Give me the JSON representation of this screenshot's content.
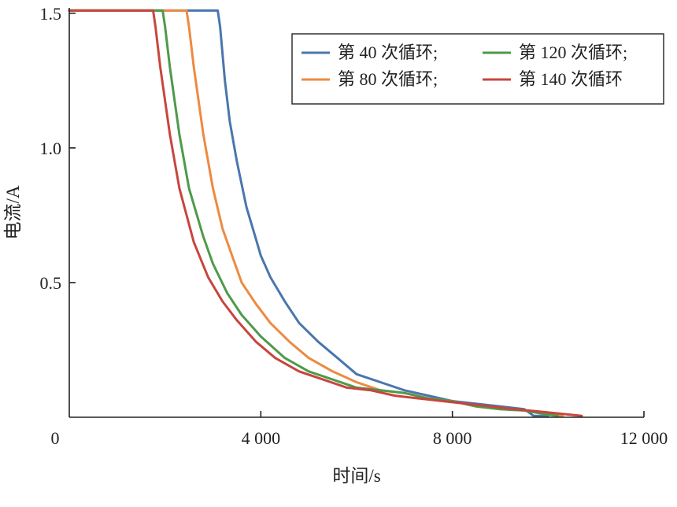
{
  "chart_data": {
    "type": "line",
    "xlabel": "时间/s",
    "ylabel": "电流/A",
    "xlim": [
      0,
      12000
    ],
    "ylim": [
      0,
      1.52
    ],
    "x_ticks": [
      {
        "value": 0,
        "label": "0"
      },
      {
        "value": 4000,
        "label": "4 000"
      },
      {
        "value": 8000,
        "label": "8 000"
      },
      {
        "value": 12000,
        "label": "12 000"
      }
    ],
    "y_ticks": [
      {
        "value": 0.5,
        "label": "0.5"
      },
      {
        "value": 1.0,
        "label": "1.0"
      },
      {
        "value": 1.5,
        "label": "1.5"
      }
    ],
    "grid": false,
    "legend_position": "top-right",
    "series": [
      {
        "name": "第 40 次循环;",
        "color": "#4a76ad",
        "x": [
          0,
          3100,
          3150,
          3250,
          3350,
          3500,
          3700,
          3900,
          4000,
          4200,
          4500,
          4800,
          5200,
          5600,
          6000,
          6500,
          7000,
          7500,
          8000,
          8500,
          9000,
          9500,
          9700,
          10000
        ],
        "y": [
          1.51,
          1.51,
          1.45,
          1.25,
          1.1,
          0.95,
          0.78,
          0.66,
          0.6,
          0.52,
          0.43,
          0.35,
          0.28,
          0.22,
          0.16,
          0.13,
          0.1,
          0.08,
          0.06,
          0.05,
          0.04,
          0.03,
          0.005,
          0.005
        ]
      },
      {
        "name": "第 80 次循环;",
        "color": "#ee8a40",
        "x": [
          0,
          2450,
          2500,
          2600,
          2800,
          3000,
          3200,
          3400,
          3600,
          3900,
          4200,
          4600,
          5000,
          5500,
          6000,
          6500,
          7000,
          7500,
          8000,
          8500,
          9000,
          9500,
          10000,
          10300
        ],
        "y": [
          1.51,
          1.51,
          1.45,
          1.3,
          1.05,
          0.85,
          0.7,
          0.6,
          0.5,
          0.42,
          0.35,
          0.28,
          0.22,
          0.17,
          0.13,
          0.1,
          0.09,
          0.07,
          0.06,
          0.04,
          0.03,
          0.025,
          0.01,
          0.005
        ]
      },
      {
        "name": "第 120 次循环;",
        "color": "#4e9a4a",
        "x": [
          0,
          1950,
          2000,
          2100,
          2300,
          2500,
          2800,
          3000,
          3300,
          3600,
          4000,
          4500,
          5000,
          5500,
          6000,
          6500,
          7000,
          7500,
          8000,
          8500,
          9000,
          9500,
          10000,
          10200
        ],
        "y": [
          1.51,
          1.51,
          1.45,
          1.3,
          1.05,
          0.85,
          0.67,
          0.57,
          0.46,
          0.38,
          0.3,
          0.22,
          0.17,
          0.14,
          0.11,
          0.1,
          0.09,
          0.07,
          0.06,
          0.04,
          0.03,
          0.025,
          0.01,
          0.005
        ]
      },
      {
        "name": "第 140 次循环",
        "color": "#c8453e",
        "x": [
          0,
          1750,
          1800,
          1900,
          2100,
          2300,
          2600,
          2900,
          3200,
          3500,
          3900,
          4300,
          4800,
          5300,
          5800,
          6300,
          6800,
          7300,
          7800,
          8300,
          8800,
          9300,
          9900,
          10700
        ],
        "y": [
          1.51,
          1.51,
          1.45,
          1.3,
          1.05,
          0.85,
          0.65,
          0.52,
          0.43,
          0.36,
          0.28,
          0.22,
          0.17,
          0.14,
          0.11,
          0.1,
          0.08,
          0.07,
          0.06,
          0.05,
          0.04,
          0.03,
          0.02,
          0.005
        ]
      }
    ]
  }
}
